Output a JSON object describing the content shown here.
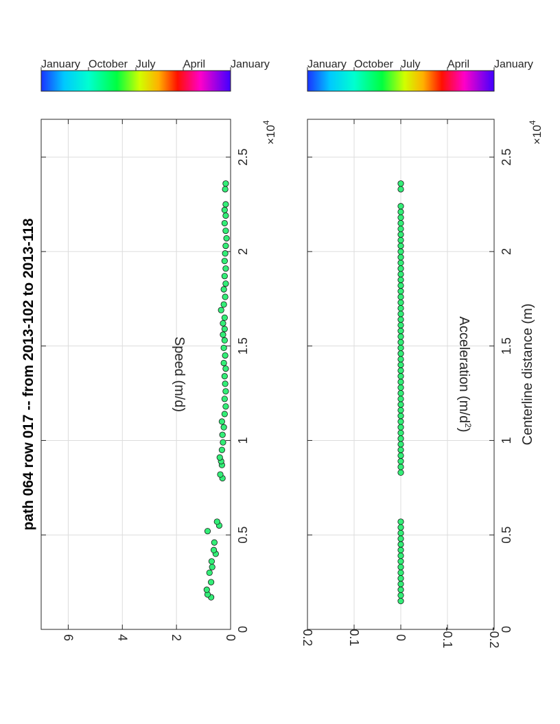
{
  "figure": {
    "title": "path 064 row 017  -- from 2013-102 to 2013-118",
    "x_exponent_base": "×10",
    "x_exponent_power": "4"
  },
  "colorbar_labels": [
    "January",
    "October",
    "July",
    "April",
    "January"
  ],
  "colors": {
    "marker_fill": "#33ee77",
    "marker_edge": "#1a1a1a",
    "grid": "#dcdcdc",
    "axis": "#262626"
  },
  "chart_data": [
    {
      "type": "scatter",
      "title": "path 064 row 017  -- from 2013-102 to 2013-118",
      "xlabel": "",
      "ylabel": "Speed (m/d)",
      "xlim": [
        0,
        27000
      ],
      "ylim": [
        0,
        7
      ],
      "x_ticks": [
        0,
        0.5,
        1,
        1.5,
        2,
        2.5
      ],
      "x_tick_labels": [
        "0",
        "0.5",
        "1",
        "1.5",
        "2",
        "2.5"
      ],
      "y_ticks": [
        0,
        2,
        4,
        6
      ],
      "y_tick_labels": [
        "0",
        "2",
        "4",
        "6"
      ],
      "grid": true,
      "colorbar": true,
      "points": [
        {
          "x": 1700,
          "y": 0.72
        },
        {
          "x": 1850,
          "y": 0.85
        },
        {
          "x": 2100,
          "y": 0.88
        },
        {
          "x": 2500,
          "y": 0.72
        },
        {
          "x": 3000,
          "y": 0.78
        },
        {
          "x": 3300,
          "y": 0.68
        },
        {
          "x": 3600,
          "y": 0.7
        },
        {
          "x": 4000,
          "y": 0.55
        },
        {
          "x": 4200,
          "y": 0.62
        },
        {
          "x": 4600,
          "y": 0.6
        },
        {
          "x": 5200,
          "y": 0.85
        },
        {
          "x": 5500,
          "y": 0.42
        },
        {
          "x": 5700,
          "y": 0.5
        },
        {
          "x": 8000,
          "y": 0.3
        },
        {
          "x": 8200,
          "y": 0.38
        },
        {
          "x": 8700,
          "y": 0.32
        },
        {
          "x": 8900,
          "y": 0.35
        },
        {
          "x": 9100,
          "y": 0.4
        },
        {
          "x": 9500,
          "y": 0.32
        },
        {
          "x": 9900,
          "y": 0.28
        },
        {
          "x": 10300,
          "y": 0.3
        },
        {
          "x": 10700,
          "y": 0.25
        },
        {
          "x": 11000,
          "y": 0.32
        },
        {
          "x": 11400,
          "y": 0.22
        },
        {
          "x": 11800,
          "y": 0.18
        },
        {
          "x": 12200,
          "y": 0.22
        },
        {
          "x": 12600,
          "y": 0.18
        },
        {
          "x": 13000,
          "y": 0.2
        },
        {
          "x": 13400,
          "y": 0.22
        },
        {
          "x": 13800,
          "y": 0.18
        },
        {
          "x": 14100,
          "y": 0.25
        },
        {
          "x": 14500,
          "y": 0.2
        },
        {
          "x": 14900,
          "y": 0.25
        },
        {
          "x": 15300,
          "y": 0.22
        },
        {
          "x": 15600,
          "y": 0.28
        },
        {
          "x": 15900,
          "y": 0.22
        },
        {
          "x": 16200,
          "y": 0.28
        },
        {
          "x": 16500,
          "y": 0.22
        },
        {
          "x": 16900,
          "y": 0.35
        },
        {
          "x": 17200,
          "y": 0.25
        },
        {
          "x": 17600,
          "y": 0.2
        },
        {
          "x": 18000,
          "y": 0.25
        },
        {
          "x": 18300,
          "y": 0.18
        },
        {
          "x": 18700,
          "y": 0.22
        },
        {
          "x": 19100,
          "y": 0.18
        },
        {
          "x": 19500,
          "y": 0.22
        },
        {
          "x": 19900,
          "y": 0.2
        },
        {
          "x": 20300,
          "y": 0.18
        },
        {
          "x": 20700,
          "y": 0.15
        },
        {
          "x": 21100,
          "y": 0.18
        },
        {
          "x": 21500,
          "y": 0.22
        },
        {
          "x": 21900,
          "y": 0.18
        },
        {
          "x": 22200,
          "y": 0.22
        },
        {
          "x": 22500,
          "y": 0.18
        },
        {
          "x": 23300,
          "y": 0.2
        },
        {
          "x": 23600,
          "y": 0.18
        }
      ]
    },
    {
      "type": "scatter",
      "title": "",
      "xlabel": "Centerline distance (m)",
      "ylabel": "Acceleration (m/d²)",
      "ylabel_main": "Acceleration (m/d",
      "ylabel_sup": "2",
      "ylabel_end": ")",
      "xlim": [
        0,
        27000
      ],
      "ylim": [
        -0.2,
        0.2
      ],
      "x_ticks": [
        0,
        0.5,
        1,
        1.5,
        2,
        2.5
      ],
      "x_tick_labels": [
        "0",
        "0.5",
        "1",
        "1.5",
        "2",
        "2.5"
      ],
      "y_ticks": [
        -0.2,
        -0.1,
        0,
        0.1,
        0.2
      ],
      "y_tick_labels": [
        "-0.2",
        "-0.1",
        "0",
        "0.1",
        "0.2"
      ],
      "grid": true,
      "colorbar": true,
      "points": [
        {
          "x": 1500,
          "y": 0
        },
        {
          "x": 1800,
          "y": 0
        },
        {
          "x": 2100,
          "y": 0
        },
        {
          "x": 2400,
          "y": 0
        },
        {
          "x": 2700,
          "y": 0
        },
        {
          "x": 3000,
          "y": 0
        },
        {
          "x": 3300,
          "y": 0
        },
        {
          "x": 3600,
          "y": 0
        },
        {
          "x": 3900,
          "y": 0
        },
        {
          "x": 4200,
          "y": 0
        },
        {
          "x": 4500,
          "y": 0
        },
        {
          "x": 4800,
          "y": 0
        },
        {
          "x": 5100,
          "y": 0
        },
        {
          "x": 5400,
          "y": 0
        },
        {
          "x": 5700,
          "y": 0
        },
        {
          "x": 8300,
          "y": 0
        },
        {
          "x": 8600,
          "y": 0
        },
        {
          "x": 8900,
          "y": 0
        },
        {
          "x": 9200,
          "y": 0
        },
        {
          "x": 9500,
          "y": 0
        },
        {
          "x": 9800,
          "y": 0
        },
        {
          "x": 10100,
          "y": 0
        },
        {
          "x": 10400,
          "y": 0
        },
        {
          "x": 10700,
          "y": 0
        },
        {
          "x": 11000,
          "y": 0
        },
        {
          "x": 11300,
          "y": 0
        },
        {
          "x": 11600,
          "y": 0
        },
        {
          "x": 11900,
          "y": 0
        },
        {
          "x": 12200,
          "y": 0
        },
        {
          "x": 12500,
          "y": 0
        },
        {
          "x": 12800,
          "y": 0
        },
        {
          "x": 13100,
          "y": 0
        },
        {
          "x": 13400,
          "y": 0
        },
        {
          "x": 13700,
          "y": 0
        },
        {
          "x": 14000,
          "y": 0
        },
        {
          "x": 14300,
          "y": 0
        },
        {
          "x": 14600,
          "y": 0
        },
        {
          "x": 14900,
          "y": 0
        },
        {
          "x": 15200,
          "y": 0
        },
        {
          "x": 15500,
          "y": 0
        },
        {
          "x": 15800,
          "y": 0
        },
        {
          "x": 16100,
          "y": 0
        },
        {
          "x": 16400,
          "y": 0
        },
        {
          "x": 16700,
          "y": 0
        },
        {
          "x": 17000,
          "y": 0
        },
        {
          "x": 17300,
          "y": 0
        },
        {
          "x": 17600,
          "y": 0
        },
        {
          "x": 17900,
          "y": 0
        },
        {
          "x": 18200,
          "y": 0
        },
        {
          "x": 18500,
          "y": 0
        },
        {
          "x": 18800,
          "y": 0
        },
        {
          "x": 19100,
          "y": 0
        },
        {
          "x": 19400,
          "y": 0
        },
        {
          "x": 19700,
          "y": 0
        },
        {
          "x": 20000,
          "y": 0
        },
        {
          "x": 20300,
          "y": 0
        },
        {
          "x": 20600,
          "y": 0
        },
        {
          "x": 20900,
          "y": 0
        },
        {
          "x": 21200,
          "y": 0
        },
        {
          "x": 21500,
          "y": 0
        },
        {
          "x": 21800,
          "y": 0
        },
        {
          "x": 22100,
          "y": 0
        },
        {
          "x": 22400,
          "y": 0
        },
        {
          "x": 23300,
          "y": 0
        },
        {
          "x": 23600,
          "y": 0
        }
      ]
    }
  ]
}
